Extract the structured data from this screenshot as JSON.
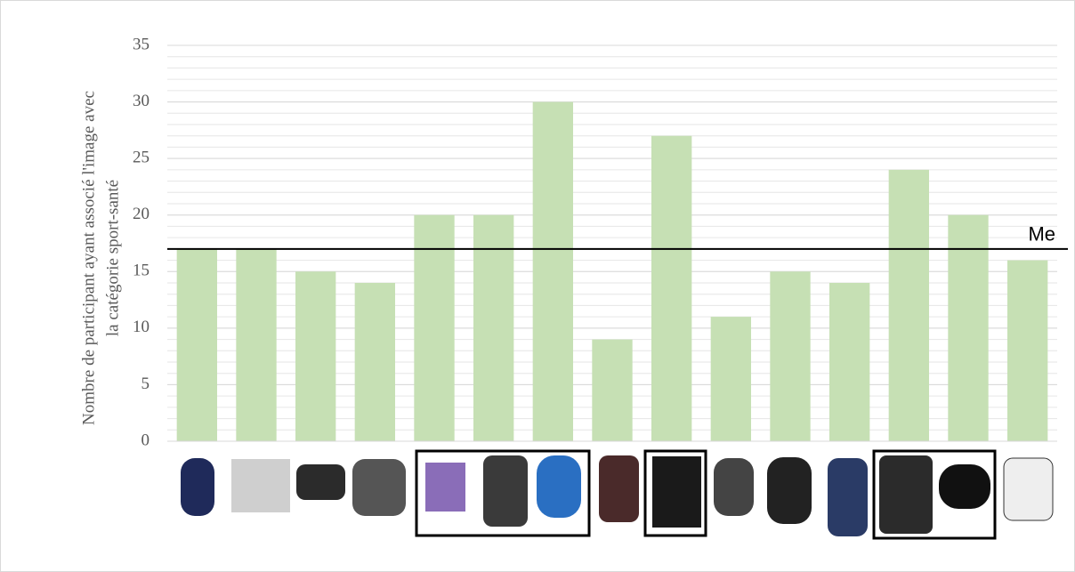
{
  "chart_data": {
    "type": "bar",
    "y_label": [
      "Nombre de participant ayant associé l'image  avec",
      "la catégorie sport-santé"
    ],
    "categories": [
      null,
      null,
      null,
      null,
      null,
      null,
      null,
      null,
      null,
      null,
      null,
      null,
      null,
      null,
      null
    ],
    "values": [
      17,
      17,
      15,
      14,
      20,
      20,
      30,
      9,
      27,
      11,
      15,
      14,
      24,
      20,
      16
    ],
    "color": "#c6e0b4",
    "ylim": [
      0,
      35
    ],
    "yticks": [
      0,
      5,
      10,
      15,
      20,
      25,
      30,
      35
    ],
    "grid": true,
    "minor_grid": true,
    "reference_line": {
      "value": 17,
      "label": "Me"
    }
  }
}
